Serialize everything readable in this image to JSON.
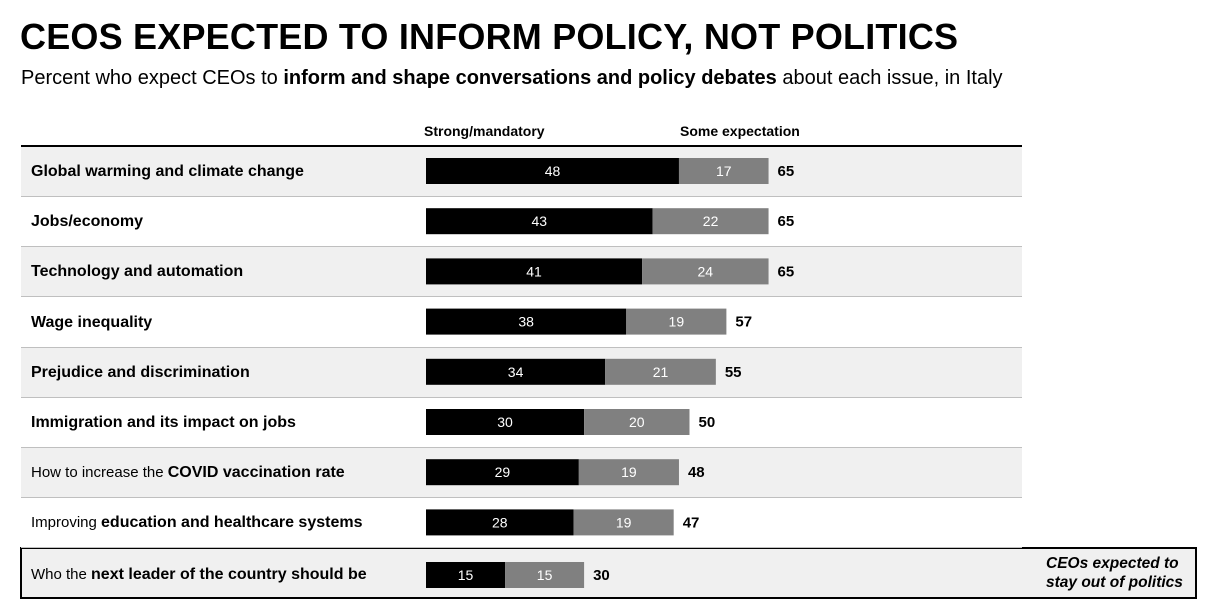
{
  "title": "CEOS EXPECTED TO INFORM POLICY, NOT POLITICS",
  "subtitle": {
    "pre": "Percent who expect CEOs to ",
    "bold": "inform and shape conversations and policy debates",
    "post": " about each issue, in Italy"
  },
  "legend": {
    "strong": "Strong/mandatory",
    "some": "Some expectation"
  },
  "note": {
    "line1": "CEOs expected to",
    "line2": "stay out of politics"
  },
  "colors": {
    "strong": "#000000",
    "some": "#808080",
    "row_shade": "#f0f0f0"
  },
  "chart_data": {
    "type": "bar",
    "orientation": "horizontal",
    "stacked": true,
    "categories": [
      "Global warming and climate change",
      "Jobs/economy",
      "Technology and automation",
      "Wage inequality",
      "Prejudice and discrimination",
      "Immigration and its impact on jobs",
      "How to increase the COVID vaccination rate",
      "Improving education and healthcare systems",
      "Who the next leader of the country should be"
    ],
    "series": [
      {
        "name": "Strong/mandatory",
        "values": [
          48,
          43,
          41,
          38,
          34,
          30,
          29,
          28,
          15
        ]
      },
      {
        "name": "Some expectation",
        "values": [
          17,
          22,
          24,
          19,
          21,
          20,
          19,
          19,
          15
        ]
      }
    ],
    "totals": [
      65,
      65,
      65,
      57,
      55,
      50,
      48,
      47,
      30
    ],
    "xlim": [
      0,
      65
    ],
    "rows": [
      {
        "pre": "",
        "bold": "Global warming and climate change"
      },
      {
        "pre": "",
        "bold": "Jobs/economy"
      },
      {
        "pre": "",
        "bold": "Technology and automation"
      },
      {
        "pre": "",
        "bold": "Wage inequality"
      },
      {
        "pre": "",
        "bold": "Prejudice and discrimination"
      },
      {
        "pre": "",
        "bold": "Immigration and its impact on jobs"
      },
      {
        "pre": "How to increase the ",
        "bold": "COVID vaccination rate"
      },
      {
        "pre": "Improving ",
        "bold": "education and healthcare systems"
      },
      {
        "pre": "Who the ",
        "bold": "next leader of the country should be"
      }
    ]
  }
}
